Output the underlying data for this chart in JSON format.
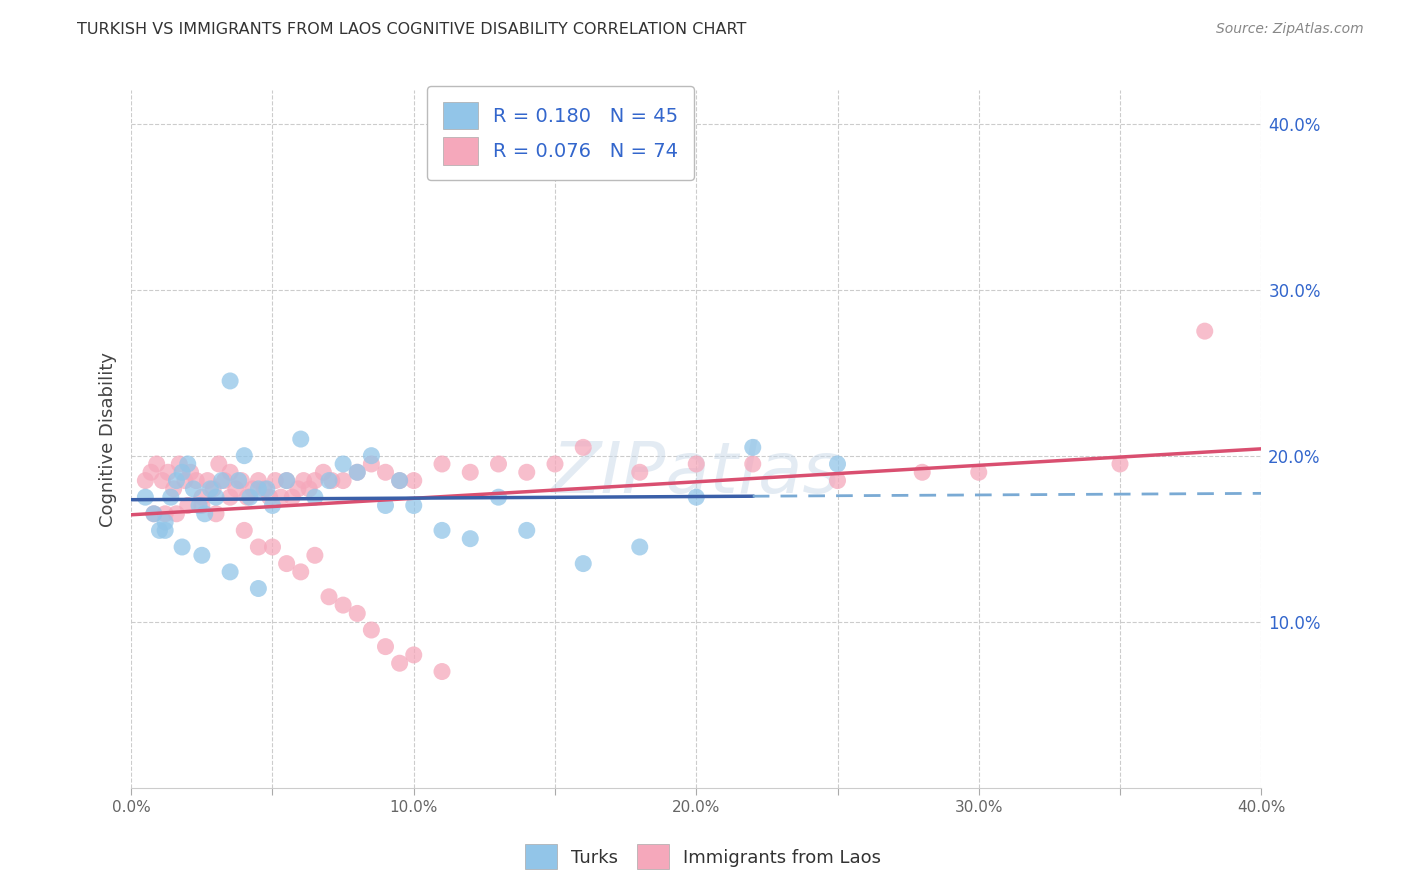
{
  "title": "TURKISH VS IMMIGRANTS FROM LAOS COGNITIVE DISABILITY CORRELATION CHART",
  "source": "Source: ZipAtlas.com",
  "ylabel": "Cognitive Disability",
  "xlim": [
    0.0,
    0.4
  ],
  "ylim": [
    0.0,
    0.42
  ],
  "xticks": [
    0.0,
    0.05,
    0.1,
    0.15,
    0.2,
    0.25,
    0.3,
    0.35,
    0.4
  ],
  "yticks": [
    0.1,
    0.2,
    0.3,
    0.4
  ],
  "ytick_labels": [
    "10.0%",
    "20.0%",
    "30.0%",
    "40.0%"
  ],
  "xtick_labels": [
    "0.0%",
    "",
    "10.0%",
    "",
    "20.0%",
    "",
    "30.0%",
    "",
    "40.0%"
  ],
  "turks_R": 0.18,
  "turks_N": 45,
  "laos_R": 0.076,
  "laos_N": 74,
  "turks_color": "#92C5E8",
  "laos_color": "#F5A8BB",
  "turks_line_color": "#3A5FA8",
  "laos_line_color": "#D94F70",
  "turks_dash_color": "#7AAAD4",
  "background_color": "#FFFFFF",
  "grid_color": "#CCCCCC",
  "title_color": "#333333",
  "source_color": "#888888",
  "label_color": "#3366CC",
  "turks_x": [
    0.005,
    0.008,
    0.01,
    0.012,
    0.014,
    0.016,
    0.018,
    0.02,
    0.022,
    0.024,
    0.026,
    0.028,
    0.03,
    0.032,
    0.035,
    0.038,
    0.04,
    0.042,
    0.045,
    0.048,
    0.05,
    0.055,
    0.06,
    0.065,
    0.07,
    0.075,
    0.08,
    0.085,
    0.09,
    0.095,
    0.1,
    0.11,
    0.12,
    0.13,
    0.14,
    0.16,
    0.18,
    0.2,
    0.22,
    0.25,
    0.012,
    0.018,
    0.025,
    0.035,
    0.045
  ],
  "turks_y": [
    0.175,
    0.165,
    0.155,
    0.16,
    0.175,
    0.185,
    0.19,
    0.195,
    0.18,
    0.17,
    0.165,
    0.18,
    0.175,
    0.185,
    0.245,
    0.185,
    0.2,
    0.175,
    0.18,
    0.18,
    0.17,
    0.185,
    0.21,
    0.175,
    0.185,
    0.195,
    0.19,
    0.2,
    0.17,
    0.185,
    0.17,
    0.155,
    0.15,
    0.175,
    0.155,
    0.135,
    0.145,
    0.175,
    0.205,
    0.195,
    0.155,
    0.145,
    0.14,
    0.13,
    0.12
  ],
  "laos_x": [
    0.005,
    0.007,
    0.009,
    0.011,
    0.013,
    0.015,
    0.017,
    0.019,
    0.021,
    0.023,
    0.025,
    0.027,
    0.029,
    0.031,
    0.033,
    0.035,
    0.037,
    0.039,
    0.041,
    0.043,
    0.045,
    0.047,
    0.049,
    0.051,
    0.053,
    0.055,
    0.057,
    0.059,
    0.061,
    0.063,
    0.065,
    0.068,
    0.071,
    0.075,
    0.08,
    0.085,
    0.09,
    0.095,
    0.1,
    0.11,
    0.12,
    0.13,
    0.14,
    0.15,
    0.16,
    0.18,
    0.2,
    0.22,
    0.25,
    0.28,
    0.3,
    0.35,
    0.38,
    0.008,
    0.012,
    0.016,
    0.02,
    0.025,
    0.03,
    0.035,
    0.04,
    0.045,
    0.05,
    0.055,
    0.06,
    0.065,
    0.07,
    0.075,
    0.08,
    0.085,
    0.09,
    0.095,
    0.1,
    0.11
  ],
  "laos_y": [
    0.185,
    0.19,
    0.195,
    0.185,
    0.19,
    0.18,
    0.195,
    0.185,
    0.19,
    0.185,
    0.175,
    0.185,
    0.18,
    0.195,
    0.185,
    0.19,
    0.18,
    0.185,
    0.175,
    0.18,
    0.185,
    0.18,
    0.175,
    0.185,
    0.175,
    0.185,
    0.175,
    0.18,
    0.185,
    0.18,
    0.185,
    0.19,
    0.185,
    0.185,
    0.19,
    0.195,
    0.19,
    0.185,
    0.185,
    0.195,
    0.19,
    0.195,
    0.19,
    0.195,
    0.205,
    0.19,
    0.195,
    0.195,
    0.185,
    0.19,
    0.19,
    0.195,
    0.275,
    0.165,
    0.165,
    0.165,
    0.17,
    0.17,
    0.165,
    0.175,
    0.155,
    0.145,
    0.145,
    0.135,
    0.13,
    0.14,
    0.115,
    0.11,
    0.105,
    0.095,
    0.085,
    0.075,
    0.08,
    0.07
  ]
}
